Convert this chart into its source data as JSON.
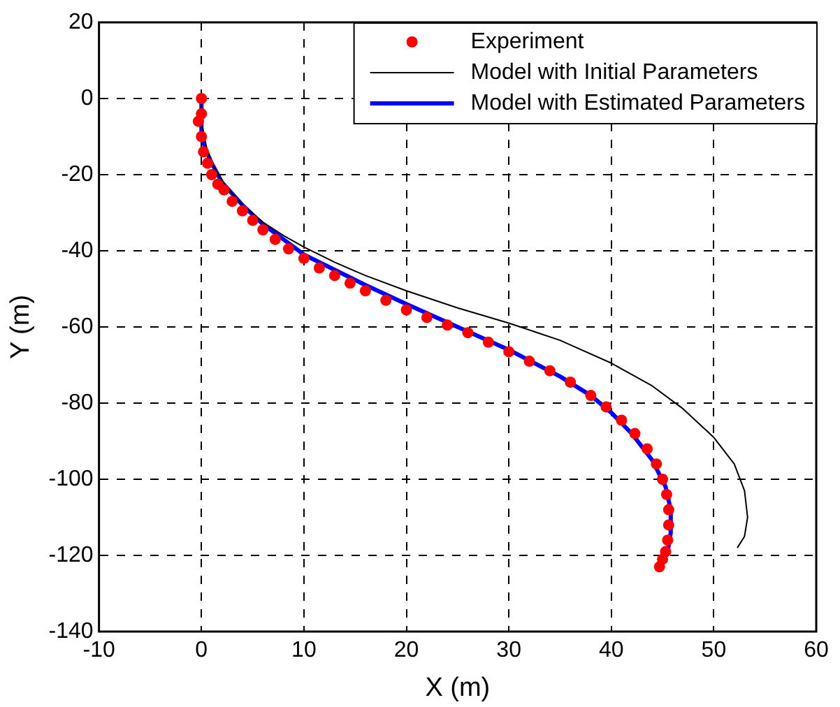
{
  "chart_data": {
    "type": "scatter",
    "xlabel": "X (m)",
    "ylabel": "Y (m)",
    "xlim": [
      -10,
      60
    ],
    "ylim": [
      -140,
      20
    ],
    "xticks": [
      -10,
      0,
      10,
      20,
      30,
      40,
      50,
      60
    ],
    "yticks": [
      -140,
      -120,
      -100,
      -80,
      -60,
      -40,
      -20,
      0,
      20
    ],
    "grid": true,
    "legend": "top right",
    "series": [
      {
        "name": "Experiment",
        "type": "scatter",
        "color": "#ff0000",
        "marker": "circle",
        "x": [
          -0.3,
          0,
          0,
          0,
          0.2,
          0.6,
          1,
          1.6,
          2.2,
          3,
          4,
          5,
          6,
          7.2,
          8.5,
          10,
          11.5,
          13,
          14.5,
          16,
          18,
          20,
          22,
          24,
          26,
          28,
          30,
          32,
          34,
          36,
          38,
          39.5,
          41,
          42.3,
          43.5,
          44.4,
          45,
          45.4,
          45.6,
          45.6,
          45.5,
          45.3,
          45,
          44.7
        ],
        "values": [
          -6,
          0,
          -4,
          -10,
          -14,
          -17,
          -20,
          -22.5,
          -24,
          -27,
          -29.5,
          -32,
          -34.5,
          -37,
          -39.5,
          -42,
          -44.5,
          -46.5,
          -48.5,
          -50.5,
          -53,
          -55.5,
          -57.5,
          -59.5,
          -61.5,
          -64,
          -66.5,
          -69,
          -71.5,
          -74.5,
          -78,
          -81,
          -84.5,
          -88,
          -92,
          -96,
          -100,
          -104,
          -108,
          -112,
          -116,
          -119,
          -121,
          -123
        ]
      },
      {
        "name": "Model with Initial Parameters",
        "type": "line",
        "color": "#000000",
        "line_style": "solid",
        "marker": "none",
        "x": [
          0,
          0,
          0.5,
          1,
          2,
          3,
          4,
          6,
          8,
          10,
          13,
          16,
          20,
          25,
          30,
          35,
          40,
          44,
          47,
          50,
          52,
          53,
          53.3,
          53,
          52.3
        ],
        "values": [
          0,
          -6,
          -13,
          -17,
          -21.5,
          -25,
          -28,
          -32.5,
          -36,
          -39,
          -43,
          -46.5,
          -50.5,
          -55,
          -59,
          -63.5,
          -69.5,
          -75.5,
          -81.5,
          -89,
          -96,
          -103,
          -110,
          -115,
          -118
        ]
      },
      {
        "name": "Model with Estimated Parameters",
        "type": "line",
        "color": "#0000ff",
        "line_style": "solid",
        "marker": "none",
        "x": [
          0,
          0,
          0.5,
          1,
          2,
          4,
          6,
          8,
          10,
          13,
          16,
          20,
          25,
          30,
          35,
          38,
          40,
          42,
          44,
          45.3,
          45.8,
          45.8,
          45.5,
          45
        ],
        "values": [
          0,
          -10,
          -14,
          -17,
          -22,
          -28,
          -33,
          -37,
          -41,
          -45,
          -49,
          -54,
          -60,
          -66,
          -73,
          -78,
          -82.5,
          -88,
          -95,
          -102,
          -108,
          -114,
          -119,
          -122
        ]
      }
    ]
  }
}
